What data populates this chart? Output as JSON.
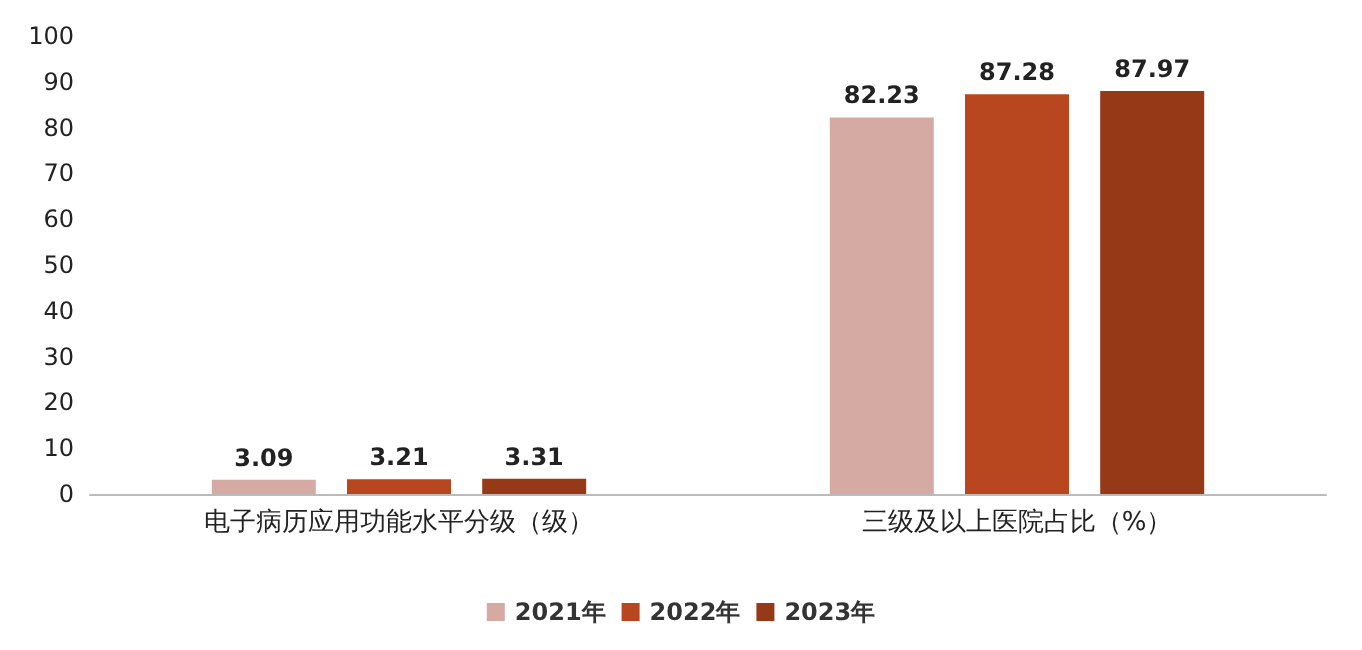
{
  "chart_data": {
    "type": "bar",
    "categories": [
      "电子病历应用功能水平分级（级）",
      "三级及以上医院占比（%）"
    ],
    "series": [
      {
        "name": "2021年",
        "color": "#d5aaa3",
        "values": [
          3.09,
          82.23
        ]
      },
      {
        "name": "2022年",
        "color": "#b84720",
        "values": [
          3.21,
          87.28
        ]
      },
      {
        "name": "2023年",
        "color": "#963916",
        "values": [
          3.31,
          87.97
        ]
      }
    ],
    "ylim": [
      0,
      100
    ],
    "yticks": [
      0,
      10,
      20,
      30,
      40,
      50,
      60,
      70,
      80,
      90,
      100
    ],
    "grid": false,
    "legend": "bottom",
    "data_labels": true
  }
}
